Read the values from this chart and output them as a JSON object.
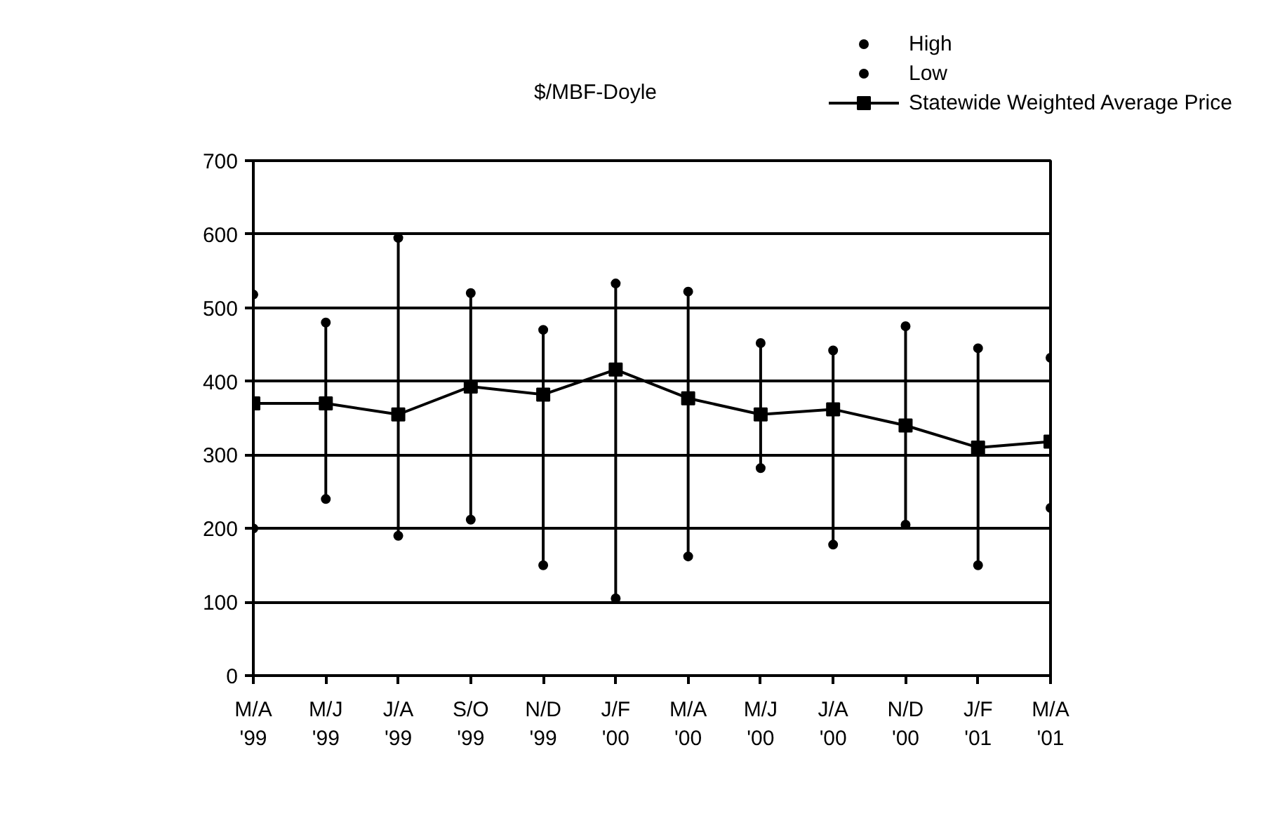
{
  "chart_data": {
    "type": "line",
    "ylabel": "$/MBF-Doyle",
    "categories": [
      "M/A\n'99",
      "M/J\n'99",
      "J/A\n'99",
      "S/O\n'99",
      "N/D\n'99",
      "J/F\n'00",
      "M/A\n'00",
      "M/J\n'00",
      "J/A\n'00",
      "N/D\n'00",
      "J/F\n'01",
      "M/A\n'01"
    ],
    "series": [
      {
        "name": "High",
        "type": "scatter",
        "marker": "circle",
        "color": "#000000",
        "values": [
          518,
          480,
          595,
          520,
          470,
          533,
          522,
          452,
          442,
          475,
          445,
          432
        ]
      },
      {
        "name": "Low",
        "type": "scatter",
        "marker": "circle",
        "color": "#000000",
        "values": [
          200,
          240,
          190,
          212,
          150,
          105,
          162,
          282,
          178,
          205,
          150,
          228
        ]
      },
      {
        "name": "Statewide Weighted Average Price",
        "marker": "square",
        "color": "#000000",
        "values": [
          370,
          370,
          355,
          393,
          382,
          416,
          377,
          355,
          362,
          340,
          310,
          318
        ]
      }
    ],
    "ylim": [
      0,
      700
    ],
    "yticks": [
      0,
      100,
      200,
      300,
      400,
      500,
      600,
      700
    ],
    "grid": "y",
    "legend": "top"
  }
}
